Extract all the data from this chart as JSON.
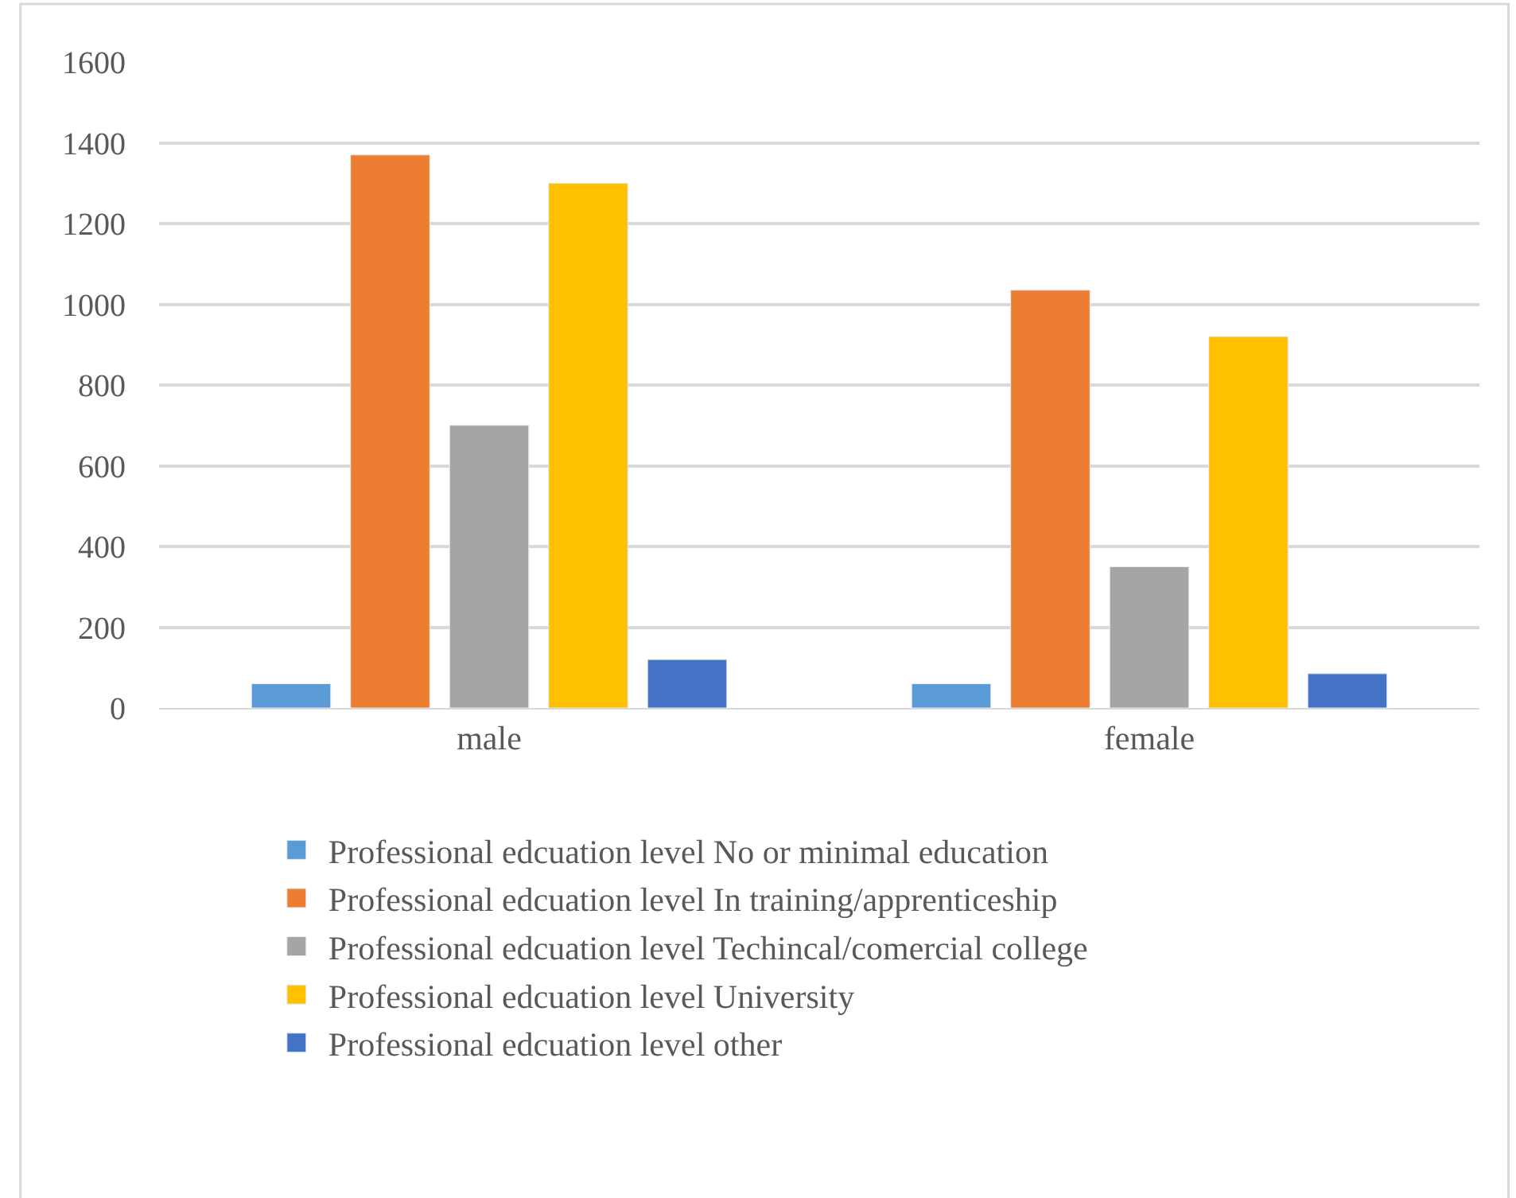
{
  "chart_data": {
    "type": "bar",
    "categories": [
      "male",
      "female"
    ],
    "series": [
      {
        "name": "Professional edcuation level No or minimal education",
        "color": "#5b9bd5",
        "values": [
          60,
          60
        ]
      },
      {
        "name": "Professional edcuation level In training/apprenticeship",
        "color": "#ed7d31",
        "values": [
          1370,
          1035
        ]
      },
      {
        "name": "Professional edcuation level Techincal/comercial college",
        "color": "#a5a5a5",
        "values": [
          700,
          350
        ]
      },
      {
        "name": "Professional edcuation level University",
        "color": "#ffc000",
        "values": [
          1300,
          920
        ]
      },
      {
        "name": "Professional edcuation level other",
        "color": "#4472c4",
        "values": [
          120,
          85
        ]
      }
    ],
    "ylim": [
      0,
      1600
    ],
    "yticks": [
      0,
      200,
      400,
      600,
      800,
      1000,
      1200,
      1400,
      1600
    ],
    "grid": "y",
    "legend": "bottom"
  }
}
